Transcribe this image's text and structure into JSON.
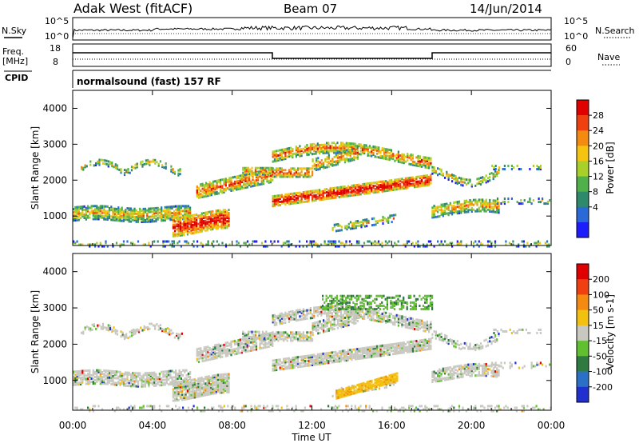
{
  "header": {
    "station": "Adak West (fitACF)",
    "beam": "Beam 07",
    "date": "14/Jun/2014"
  },
  "noise_panel": {
    "left_label": "N.Sky",
    "right_label": "N.Search",
    "tick_top": "10^5",
    "tick_bottom": "10^0"
  },
  "freq_panel": {
    "left_label_1": "Freq.",
    "left_label_2": "[MHz]",
    "right_label": "Nave",
    "left_ticks": [
      "18",
      "8"
    ],
    "right_ticks": [
      "60",
      "0"
    ]
  },
  "cpid_panel": {
    "label": "CPID",
    "program": "normalsound (fast) 157 RF"
  },
  "chart_data": [
    {
      "type": "heatmap",
      "parameter": "Power",
      "ylabel": "Slant Range [km]",
      "yticks": [
        "4000",
        "3000",
        "2000",
        "1000"
      ],
      "ylim": [
        180,
        4500
      ],
      "colorbar_label": "Power [dB]",
      "colorbar_ticks": [
        "28",
        "24",
        "20",
        "16",
        "12",
        "8",
        "4"
      ],
      "colors": [
        "#1c1cff",
        "#2a6ad8",
        "#2e8a6a",
        "#50b04a",
        "#a8d028",
        "#f4c410",
        "#f48a10",
        "#f04010",
        "#e00000"
      ]
    },
    {
      "type": "heatmap",
      "parameter": "Velocity",
      "ylabel": "Slant Range [km]",
      "yticks": [
        "4000",
        "3000",
        "2000",
        "1000"
      ],
      "ylim": [
        180,
        4500
      ],
      "colorbar_label": "Velocity [m s-1]",
      "colorbar_ticks": [
        "200",
        "100",
        "50",
        "15",
        "-15",
        "-50",
        "-100",
        "-200"
      ],
      "colors": [
        "#2030d0",
        "#2a70c8",
        "#2e7a40",
        "#60c030",
        "#c8c8c0",
        "#f4c010",
        "#f48a10",
        "#f04010",
        "#e00000"
      ]
    }
  ],
  "xaxis": {
    "label": "Time UT",
    "ticks": [
      "00:00",
      "04:00",
      "08:00",
      "12:00",
      "16:00",
      "20:00",
      "00:00"
    ]
  }
}
